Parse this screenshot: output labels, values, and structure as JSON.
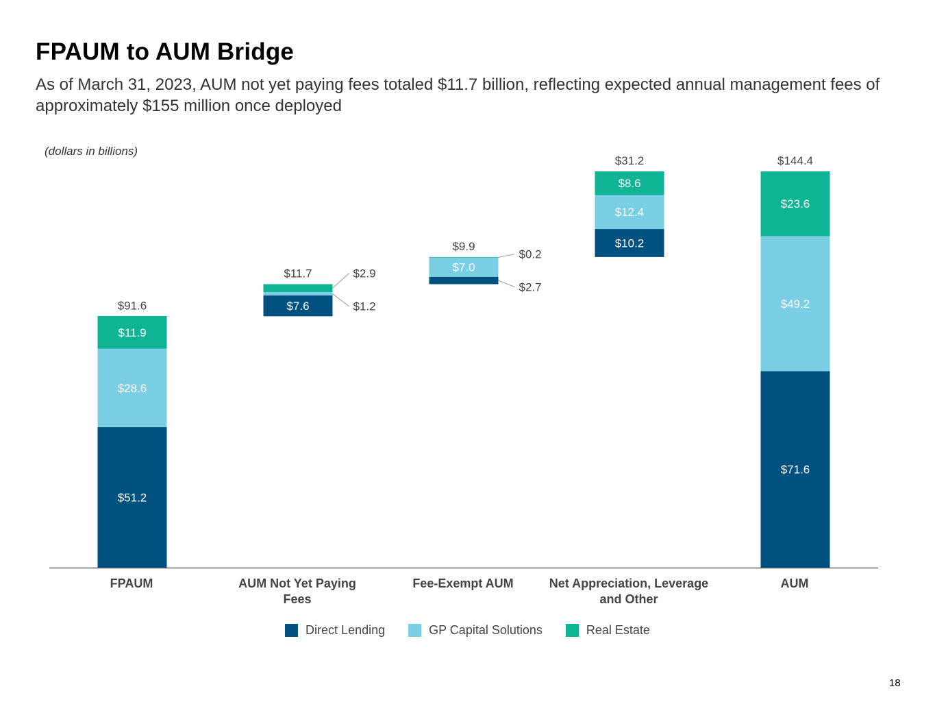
{
  "title": "FPAUM to AUM Bridge",
  "subtitle": "As of March 31, 2023, AUM not yet paying fees totaled $11.7 billion, reflecting expected annual management fees of approximately $155 million once deployed",
  "units_note": "(dollars in billions)",
  "page_number": "18",
  "colors": {
    "direct_lending": "#00517F",
    "gp_capital_solutions": "#7ACFE5",
    "real_estate": "#0EB494",
    "axis": "#666666",
    "total_label": "#444444",
    "leader": "#AAAAAA"
  },
  "chart_data": {
    "type": "bar",
    "subtype": "waterfall-stacked",
    "categories": [
      "FPAUM",
      "AUM Not Yet Paying Fees",
      "Fee-Exempt AUM",
      "Net Appreciation, Leverage and Other",
      "AUM"
    ],
    "series": [
      {
        "name": "Direct Lending",
        "values": [
          51.2,
          7.6,
          2.7,
          10.2,
          71.6
        ],
        "labels": [
          "$51.2",
          "$7.6",
          "$2.7",
          "$10.2",
          "$71.6"
        ]
      },
      {
        "name": "GP Capital Solutions",
        "values": [
          28.6,
          1.2,
          7.0,
          12.4,
          49.2
        ],
        "labels": [
          "$28.6",
          "$1.2",
          "$7.0",
          "$12.4",
          "$49.2"
        ]
      },
      {
        "name": "Real Estate",
        "values": [
          11.9,
          2.9,
          0.2,
          8.6,
          23.6
        ],
        "labels": [
          "$11.9",
          "$2.9",
          "$0.2",
          "$8.6",
          "$23.6"
        ]
      }
    ],
    "totals": [
      91.6,
      11.7,
      9.9,
      31.2,
      144.4
    ],
    "total_labels": [
      "$91.6",
      "$11.7",
      "$9.9",
      "$31.2",
      "$144.4"
    ],
    "bases": [
      0,
      91.6,
      103.3,
      113.2,
      0
    ],
    "ylim": [
      0,
      144.4
    ],
    "legend_position": "bottom",
    "grid": false
  }
}
